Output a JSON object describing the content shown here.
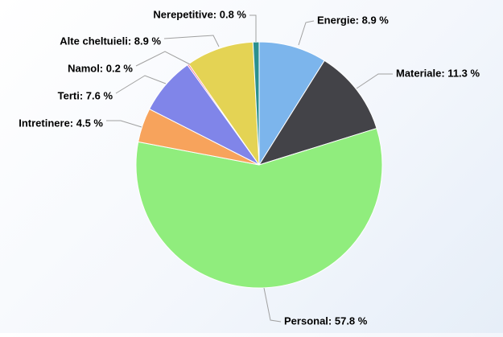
{
  "chart_data": {
    "type": "pie",
    "title": "",
    "slices": [
      {
        "label": "Energie",
        "value": 8.9,
        "display": "Energie: 8.9 %",
        "color": "#7cb5ec"
      },
      {
        "label": "Materiale",
        "value": 11.3,
        "display": "Materiale: 11.3 %",
        "color": "#434348"
      },
      {
        "label": "Personal",
        "value": 57.8,
        "display": "Personal: 57.8 %",
        "color": "#90ed7d"
      },
      {
        "label": "Intretinere",
        "value": 4.5,
        "display": "Intretinere: 4.5 %",
        "color": "#f7a35c"
      },
      {
        "label": "Terti",
        "value": 7.6,
        "display": "Terti: 7.6 %",
        "color": "#8085e9"
      },
      {
        "label": "Namol",
        "value": 0.2,
        "display": "Namol: 0.2 %",
        "color": "#f15c80"
      },
      {
        "label": "Alte cheltuieli",
        "value": 8.9,
        "display": "Alte cheltuieli: 8.9 %",
        "color": "#e4d354"
      },
      {
        "label": "Nerepetitive",
        "value": 0.8,
        "display": "Nerepetitive: 0.8 %",
        "color": "#2b908f"
      }
    ]
  }
}
